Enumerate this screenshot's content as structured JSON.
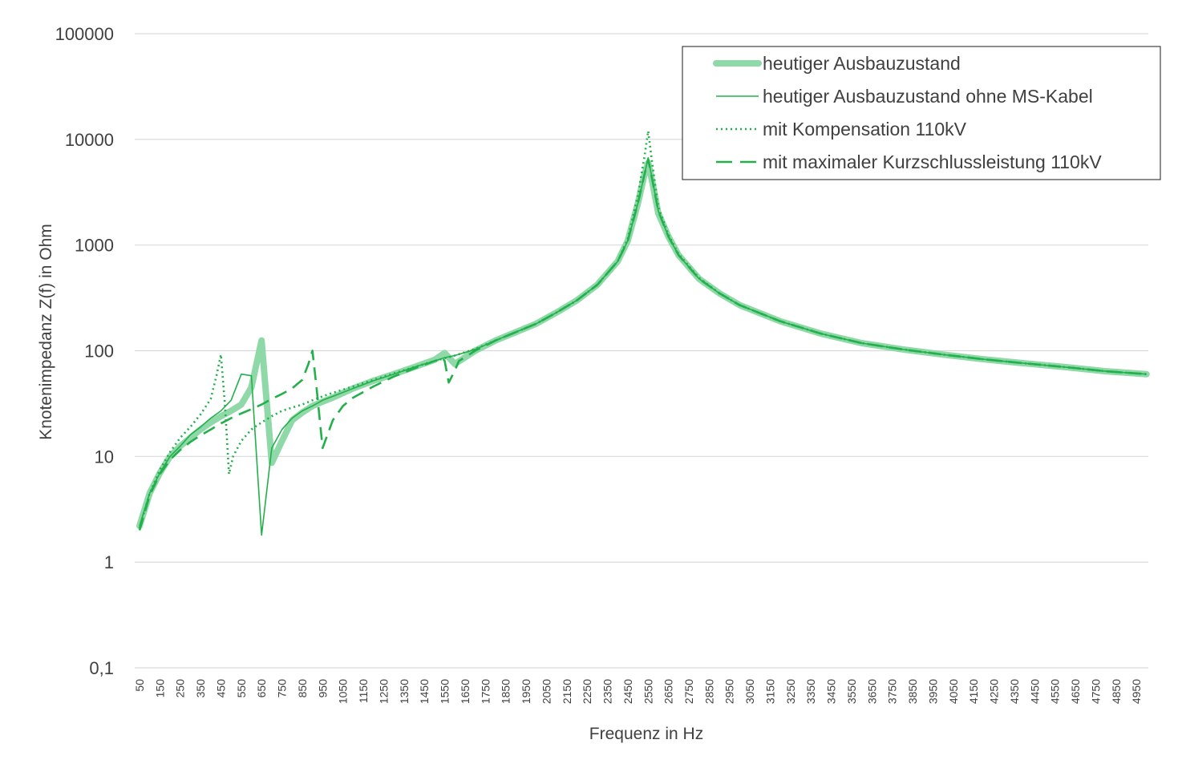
{
  "chart_data": {
    "type": "line",
    "xlabel": "Frequenz in Hz",
    "ylabel": "Knotenimpedanz Z(f)  in Ohm",
    "yscale": "log",
    "ylim": [
      0.1,
      100000
    ],
    "ytick_values": [
      0.1,
      1,
      10,
      100,
      1000,
      10000,
      100000
    ],
    "ytick_labels": [
      "0,1",
      "1",
      "10",
      "100",
      "1000",
      "10000",
      "100000"
    ],
    "xlim": [
      50,
      5000
    ],
    "xtick_labels": [
      "50",
      "150",
      "250",
      "350",
      "450",
      "550",
      "650",
      "750",
      "850",
      "950",
      "1050",
      "1150",
      "1250",
      "1350",
      "1450",
      "1550",
      "1650",
      "1750",
      "1850",
      "1950",
      "2050",
      "2150",
      "2250",
      "2350",
      "2450",
      "2550",
      "2650",
      "2750",
      "2850",
      "2950",
      "3050",
      "3150",
      "3250",
      "3350",
      "3450",
      "3550",
      "3650",
      "3750",
      "3850",
      "3950",
      "4050",
      "4150",
      "4250",
      "4350",
      "4450",
      "4550",
      "4650",
      "4750",
      "4850",
      "4950"
    ],
    "grid": true,
    "legend_position": "top-right",
    "series": [
      {
        "name": "heutiger Ausbauzustand",
        "color": "#8fd8a8",
        "style": "thick",
        "x": [
          50,
          100,
          150,
          200,
          250,
          300,
          350,
          400,
          450,
          500,
          550,
          600,
          650,
          700,
          750,
          800,
          850,
          900,
          950,
          1000,
          1100,
          1200,
          1300,
          1400,
          1500,
          1550,
          1600,
          1700,
          1800,
          1900,
          2000,
          2100,
          2200,
          2300,
          2400,
          2450,
          2500,
          2530,
          2550,
          2570,
          2600,
          2650,
          2700,
          2800,
          2900,
          3000,
          3200,
          3400,
          3600,
          3800,
          4000,
          4200,
          4400,
          4600,
          4800,
          5000
        ],
        "y": [
          2.2,
          4.5,
          7,
          10,
          12.5,
          15,
          18,
          21,
          24,
          27,
          31,
          45,
          125,
          8.7,
          14,
          22,
          26,
          30,
          33,
          36,
          44,
          52,
          60,
          70,
          82,
          95,
          75,
          100,
          125,
          150,
          180,
          230,
          300,
          420,
          700,
          1100,
          2500,
          4500,
          6000,
          4000,
          2000,
          1200,
          800,
          480,
          350,
          270,
          190,
          145,
          118,
          103,
          92,
          83,
          76,
          70,
          64,
          60
        ]
      },
      {
        "name": "heutiger Ausbauzustand ohne MS-Kabel",
        "color": "#22b04b",
        "style": "thin",
        "x": [
          50,
          100,
          150,
          200,
          250,
          300,
          350,
          400,
          450,
          500,
          550,
          600,
          650,
          700,
          750,
          800,
          850,
          900,
          950,
          1000,
          1100,
          1200,
          1300,
          1400,
          1500,
          1550,
          1600,
          1700,
          1800,
          1900,
          2000,
          2100,
          2200,
          2300,
          2400,
          2450,
          2500,
          2530,
          2550,
          2570,
          2600,
          2650,
          2700,
          2800,
          2900,
          3000,
          3200,
          3400,
          3600,
          3800,
          4000,
          4200,
          4400,
          4600,
          4800,
          5000
        ],
        "y": [
          2.2,
          4.5,
          7,
          10,
          12.5,
          16,
          19,
          23,
          27,
          34,
          60,
          58,
          1.8,
          12,
          18,
          23,
          27,
          30,
          34,
          37,
          44,
          52,
          60,
          70,
          80,
          86,
          90,
          103,
          125,
          150,
          180,
          230,
          300,
          420,
          700,
          1100,
          2500,
          4500,
          6700,
          4200,
          2100,
          1200,
          800,
          480,
          350,
          270,
          190,
          145,
          118,
          103,
          92,
          83,
          76,
          70,
          64,
          60
        ]
      },
      {
        "name": "mit Kompensation 110kV",
        "color": "#22b04b",
        "style": "dotted",
        "x": [
          50,
          100,
          150,
          200,
          250,
          300,
          350,
          400,
          430,
          450,
          470,
          490,
          510,
          550,
          600,
          650,
          700,
          750,
          800,
          850,
          900,
          950,
          1000,
          1100,
          1200,
          1300,
          1400,
          1500,
          1600,
          1700,
          1800,
          1900,
          2000,
          2100,
          2200,
          2300,
          2400,
          2450,
          2500,
          2530,
          2550,
          2570,
          2600,
          2650,
          2700,
          2800,
          2900,
          3000,
          3200,
          3400,
          3600,
          3800,
          4000,
          4200,
          4400,
          4600,
          4800,
          5000
        ],
        "y": [
          2.1,
          4.5,
          7.5,
          11,
          15,
          19,
          25,
          35,
          60,
          92,
          30,
          6.8,
          10,
          14,
          18,
          21,
          24,
          27,
          29,
          31,
          34,
          37,
          40,
          46,
          53,
          61,
          70,
          80,
          90,
          104,
          125,
          150,
          180,
          230,
          300,
          420,
          700,
          1150,
          3000,
          6500,
          12000,
          6000,
          2300,
          1250,
          820,
          490,
          350,
          270,
          190,
          145,
          118,
          103,
          92,
          83,
          76,
          70,
          64,
          60
        ]
      },
      {
        "name": "mit maximaler Kurzschlussleistung 110kV",
        "color": "#22b04b",
        "style": "dashed",
        "x": [
          50,
          100,
          150,
          200,
          250,
          300,
          350,
          400,
          450,
          500,
          550,
          600,
          650,
          700,
          750,
          800,
          850,
          880,
          900,
          920,
          950,
          1000,
          1050,
          1100,
          1200,
          1300,
          1400,
          1500,
          1540,
          1550,
          1570,
          1600,
          1620,
          1700,
          1800,
          1900,
          2000,
          2100,
          2200,
          2300,
          2400,
          2450,
          2500,
          2530,
          2550,
          2570,
          2600,
          2650,
          2700,
          2800,
          2900,
          3000,
          3200,
          3400,
          3600,
          3800,
          4000,
          4200,
          4400,
          4600,
          4800,
          5000
        ],
        "y": [
          2.0,
          4.3,
          6.8,
          9.3,
          11.5,
          13.7,
          15.8,
          18,
          20.5,
          23,
          25.5,
          28,
          31,
          35,
          39,
          44,
          53,
          75,
          100,
          45,
          12,
          22,
          30,
          36,
          46,
          57,
          68,
          80,
          85,
          80,
          50,
          65,
          80,
          100,
          125,
          150,
          180,
          230,
          300,
          420,
          700,
          1100,
          2500,
          4500,
          6500,
          4200,
          2100,
          1200,
          800,
          480,
          350,
          270,
          190,
          145,
          118,
          103,
          92,
          83,
          76,
          70,
          64,
          60
        ]
      }
    ]
  }
}
